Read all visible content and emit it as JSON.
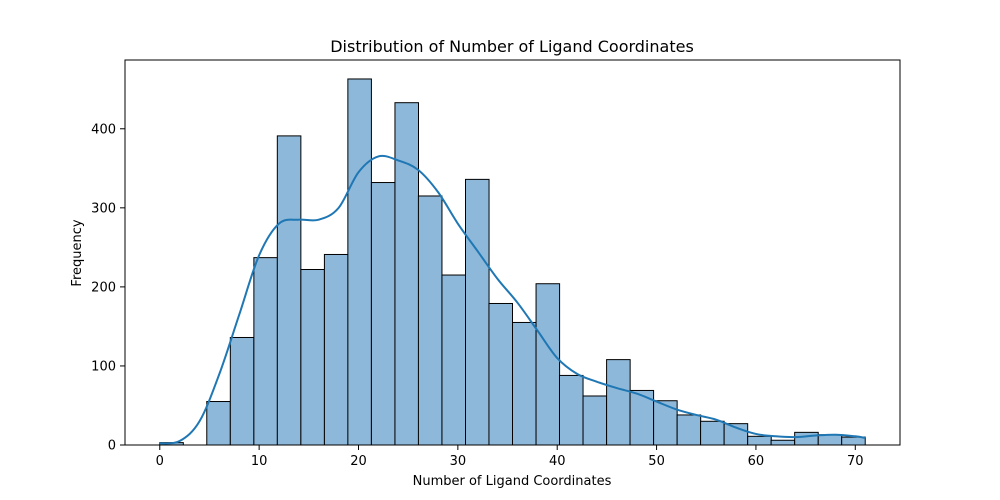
{
  "chart_data": {
    "type": "bar",
    "title": "Distribution of Number of Ligand Coordinates",
    "xlabel": "Number of Ligand Coordinates",
    "ylabel": "Frequency",
    "xlim": [
      -3.5,
      74.5
    ],
    "ylim": [
      0,
      487
    ],
    "xticks": [
      0,
      10,
      20,
      30,
      40,
      50,
      60,
      70
    ],
    "yticks": [
      0,
      100,
      200,
      300,
      400
    ],
    "bin_width": 2.37,
    "bins": [
      {
        "x0": 0.0,
        "value": 3
      },
      {
        "x0": 4.73,
        "value": 55
      },
      {
        "x0": 7.1,
        "value": 136
      },
      {
        "x0": 9.47,
        "value": 237
      },
      {
        "x0": 11.83,
        "value": 391
      },
      {
        "x0": 14.2,
        "value": 222
      },
      {
        "x0": 16.57,
        "value": 241
      },
      {
        "x0": 18.93,
        "value": 463
      },
      {
        "x0": 21.3,
        "value": 332
      },
      {
        "x0": 23.67,
        "value": 433
      },
      {
        "x0": 26.03,
        "value": 315
      },
      {
        "x0": 28.4,
        "value": 215
      },
      {
        "x0": 30.77,
        "value": 336
      },
      {
        "x0": 33.13,
        "value": 179
      },
      {
        "x0": 35.5,
        "value": 155
      },
      {
        "x0": 37.87,
        "value": 204
      },
      {
        "x0": 40.23,
        "value": 88
      },
      {
        "x0": 42.6,
        "value": 62
      },
      {
        "x0": 44.97,
        "value": 108
      },
      {
        "x0": 47.33,
        "value": 69
      },
      {
        "x0": 49.7,
        "value": 56
      },
      {
        "x0": 52.07,
        "value": 38
      },
      {
        "x0": 54.43,
        "value": 30
      },
      {
        "x0": 56.8,
        "value": 27
      },
      {
        "x0": 59.17,
        "value": 11
      },
      {
        "x0": 61.53,
        "value": 6
      },
      {
        "x0": 63.9,
        "value": 16
      },
      {
        "x0": 66.27,
        "value": 13
      },
      {
        "x0": 68.63,
        "value": 10
      }
    ],
    "kde": {
      "x": [
        0,
        2,
        4,
        6,
        8,
        10,
        12,
        14,
        16,
        18,
        20,
        22,
        24,
        26,
        28,
        30,
        32,
        34,
        36,
        38,
        40,
        42,
        44,
        46,
        48,
        50,
        52,
        54,
        56,
        58,
        60,
        62,
        64,
        66,
        68,
        70,
        71
      ],
      "y": [
        2,
        5,
        30,
        90,
        165,
        240,
        280,
        285,
        285,
        300,
        345,
        365,
        360,
        348,
        320,
        280,
        245,
        210,
        180,
        145,
        110,
        90,
        80,
        72,
        65,
        55,
        45,
        38,
        32,
        22,
        14,
        11,
        10,
        12,
        13,
        11,
        9
      ]
    },
    "colors": {
      "bar_fill": "#8db8da",
      "bar_edge": "#000000",
      "kde_line": "#1f77b4",
      "axes_edge": "#000000"
    },
    "grid": false,
    "legend": "none"
  }
}
